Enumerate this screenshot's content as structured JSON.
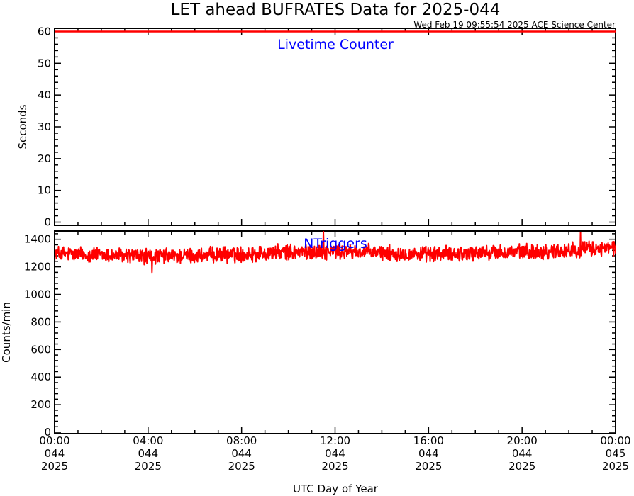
{
  "title": "LET ahead BUFRATES Data for 2025-044",
  "timestamp": "Wed Feb 19 09:55:54 2025 ACE Science Center",
  "colors": {
    "series": "#ff0000",
    "label": "#0000ff",
    "axes": "#000000",
    "background": "#ffffff"
  },
  "chart_data": [
    {
      "type": "line",
      "panel_label": "Livetime Counter",
      "ylabel": "Seconds",
      "ylim": [
        -1,
        61
      ],
      "yticks": [
        0,
        10,
        20,
        30,
        40,
        50,
        60
      ],
      "ytick_labels": [
        "0",
        "10",
        "20",
        "30",
        "40",
        "50",
        "60"
      ],
      "xlim_hours": [
        0,
        24
      ],
      "grid": false,
      "series": [
        {
          "x_range_hours": [
            0,
            24
          ],
          "constant_value": 60,
          "color": "#ff0000"
        }
      ]
    },
    {
      "type": "line",
      "panel_label": "NTriggers",
      "ylabel": "Counts/min",
      "ylim": [
        -10,
        1460
      ],
      "yticks": [
        0,
        200,
        400,
        600,
        800,
        1000,
        1200,
        1400
      ],
      "ytick_labels": [
        "0",
        "200",
        "400",
        "600",
        "800",
        "1000",
        "1200",
        "1400"
      ],
      "xlim_hours": [
        0,
        24
      ],
      "grid": false,
      "series": [
        {
          "color": "#ff0000",
          "x_hours": [
            0,
            1,
            2,
            3,
            4,
            5,
            6,
            7,
            8,
            9,
            10,
            11,
            12,
            13,
            14,
            15,
            16,
            17,
            18,
            19,
            20,
            21,
            22,
            23,
            24
          ],
          "mean_counts": [
            1295,
            1290,
            1285,
            1280,
            1275,
            1278,
            1280,
            1285,
            1290,
            1300,
            1305,
            1310,
            1312,
            1308,
            1300,
            1295,
            1290,
            1295,
            1300,
            1305,
            1308,
            1310,
            1320,
            1330,
            1335
          ],
          "spread": 60,
          "peak_max": 1460,
          "trough_min": 1160
        }
      ]
    }
  ],
  "xaxis": {
    "label": "UTC Day of Year",
    "ticks": [
      {
        "hour": 0,
        "time": "00:00",
        "doy": "044",
        "year": "2025"
      },
      {
        "hour": 4,
        "time": "04:00",
        "doy": "044",
        "year": "2025"
      },
      {
        "hour": 8,
        "time": "08:00",
        "doy": "044",
        "year": "2025"
      },
      {
        "hour": 12,
        "time": "12:00",
        "doy": "044",
        "year": "2025"
      },
      {
        "hour": 16,
        "time": "16:00",
        "doy": "044",
        "year": "2025"
      },
      {
        "hour": 20,
        "time": "20:00",
        "doy": "044",
        "year": "2025"
      },
      {
        "hour": 24,
        "time": "00:00",
        "doy": "045",
        "year": "2025"
      }
    ]
  }
}
